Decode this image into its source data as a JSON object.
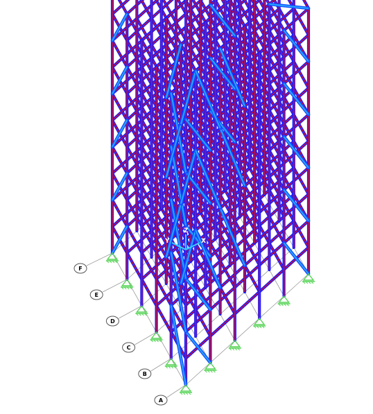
{
  "app": {
    "view": "3-D model view",
    "model_type": "steel moment frame with braced core"
  },
  "colors": {
    "beam_outer": "#1c1cff",
    "beam_inner": "#c01040",
    "brace": "#2aa8ff",
    "support": "#55d455",
    "grid_line": "#999999",
    "axis": "#39d0ff"
  },
  "grid_bubbles": [
    {
      "label": "A"
    },
    {
      "label": "B"
    },
    {
      "label": "C"
    },
    {
      "label": "D"
    },
    {
      "label": "E"
    },
    {
      "label": "F"
    }
  ],
  "axes": {
    "z": "Z",
    "x": "X",
    "y": "Y"
  }
}
